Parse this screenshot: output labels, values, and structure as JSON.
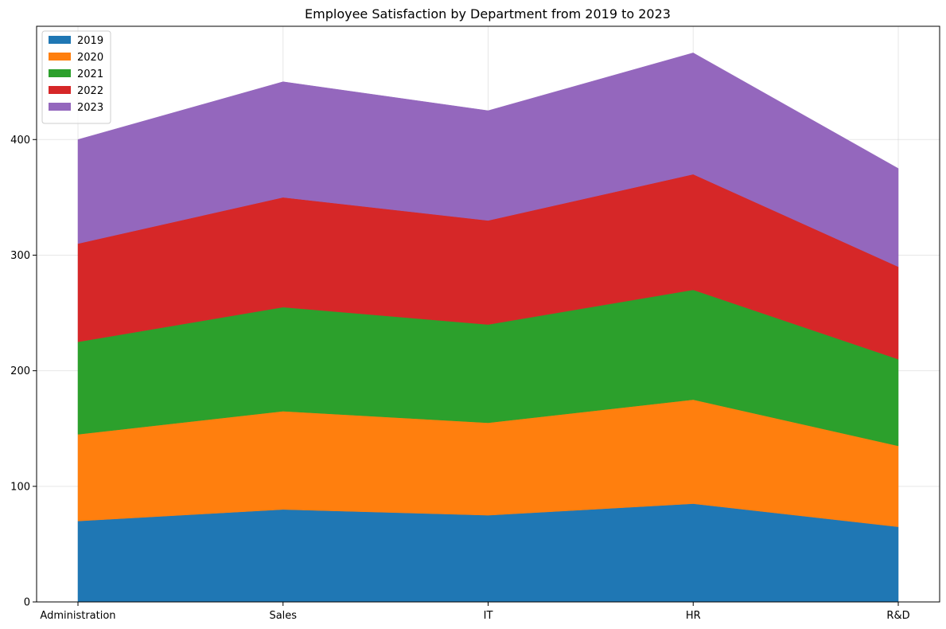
{
  "chart_data": {
    "type": "area",
    "stacked": true,
    "title": "Employee Satisfaction by Department from 2019 to 2023",
    "xlabel": "",
    "ylabel": "",
    "categories": [
      "Administration",
      "Sales",
      "IT",
      "HR",
      "R&D"
    ],
    "ylim": [
      0,
      498
    ],
    "yticks": [
      0,
      100,
      200,
      300,
      400
    ],
    "grid": true,
    "legend_position": "top-left",
    "series": [
      {
        "name": "2019",
        "color": "#1f77b4",
        "values": [
          70,
          80,
          75,
          85,
          65
        ]
      },
      {
        "name": "2020",
        "color": "#ff7f0e",
        "values": [
          75,
          85,
          80,
          90,
          70
        ]
      },
      {
        "name": "2021",
        "color": "#2ca02c",
        "values": [
          80,
          90,
          85,
          95,
          75
        ]
      },
      {
        "name": "2022",
        "color": "#d62728",
        "values": [
          85,
          95,
          90,
          100,
          80
        ]
      },
      {
        "name": "2023",
        "color": "#9467bd",
        "values": [
          90,
          100,
          95,
          105,
          85
        ]
      }
    ]
  }
}
